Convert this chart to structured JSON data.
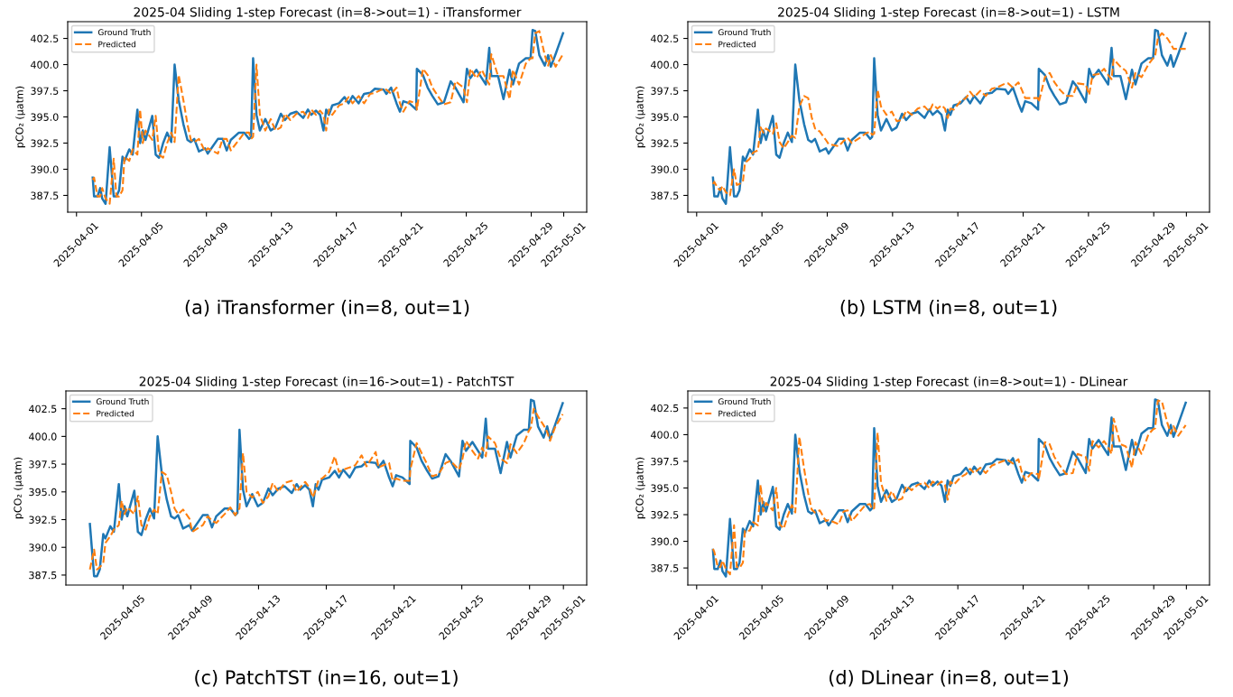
{
  "chart_data": [
    {
      "type": "line",
      "title": "2025-04 Sliding 1-step Forecast (in=8->out=1) - iTransformer",
      "ylabel": "pCO₂ (µatm)",
      "annotations": [
        "(a) iTransformer (in=8, out=1)"
      ],
      "x": [
        "2025-04-02T00:00",
        "2025-04-02T02:00",
        "2025-04-02T07:00",
        "2025-04-02T11:00",
        "2025-04-02T14:00",
        "2025-04-02T19:00",
        "2025-04-03T01:00",
        "2025-04-03T07:00",
        "2025-04-03T11:00",
        "2025-04-03T15:00",
        "2025-04-03T20:00",
        "2025-04-03T23:00",
        "2025-04-04T06:00",
        "2025-04-04T11:00",
        "2025-04-04T18:00",
        "2025-04-04T22:00",
        "2025-04-05T02:00",
        "2025-04-05T06:00",
        "2025-04-05T16:00",
        "2025-04-05T21:00",
        "2025-04-06T02:00",
        "2025-04-06T08:00",
        "2025-04-06T14:00",
        "2025-04-06T20:00",
        "2025-04-07T01:00",
        "2025-04-07T07:00",
        "2025-04-07T14:00",
        "2025-04-07T20:00",
        "2025-04-08T01:00",
        "2025-04-08T06:00",
        "2025-04-08T13:00",
        "2025-04-08T22:00",
        "2025-04-09T02:00",
        "2025-04-09T17:00",
        "2025-04-10T00:00",
        "2025-04-10T06:00",
        "2025-04-10T12:00",
        "2025-04-11T00:00",
        "2025-04-11T08:00",
        "2025-04-11T15:00",
        "2025-04-11T18:00",
        "2025-04-11T21:00",
        "2025-04-12T02:00",
        "2025-04-12T07:00",
        "2025-04-12T15:00",
        "2025-04-12T23:00",
        "2025-04-13T06:00",
        "2025-04-13T14:00",
        "2025-04-13T20:00",
        "2025-04-14T04:00",
        "2025-04-14T13:00",
        "2025-04-14T23:00",
        "2025-04-15T06:00",
        "2025-04-15T11:00",
        "2025-04-15T18:00",
        "2025-04-16T00:00",
        "2025-04-16T05:00",
        "2025-04-16T09:00",
        "2025-04-16T13:00",
        "2025-04-16T18:00",
        "2025-04-17T04:00",
        "2025-04-17T12:00",
        "2025-04-17T18:00",
        "2025-04-18T00:00",
        "2025-04-18T09:00",
        "2025-04-18T17:00",
        "2025-04-19T02:00",
        "2025-04-19T09:00",
        "2025-04-19T22:00",
        "2025-04-20T02:00",
        "2025-04-20T09:00",
        "2025-04-20T17:00",
        "2025-04-20T22:00",
        "2025-04-21T03:00",
        "2025-04-21T12:00",
        "2025-04-21T22:00",
        "2025-04-21T23:00",
        "2025-04-22T08:00",
        "2025-04-22T15:00",
        "2025-04-22T22:00",
        "2025-04-23T06:00",
        "2025-04-23T15:00",
        "2025-04-24T01:00",
        "2025-04-24T08:00",
        "2025-04-24T20:00",
        "2025-04-25T01:00",
        "2025-04-25T06:00",
        "2025-04-25T15:00",
        "2025-04-25T23:00",
        "2025-04-26T05:00",
        "2025-04-26T10:00",
        "2025-04-26T13:00",
        "2025-04-26T23:00",
        "2025-04-27T07:00",
        "2025-04-27T16:00",
        "2025-04-27T21:00",
        "2025-04-28T06:00",
        "2025-04-28T16:00",
        "2025-04-28T23:00",
        "2025-04-29T02:00",
        "2025-04-29T06:00",
        "2025-04-29T12:00",
        "2025-04-29T20:00",
        "2025-04-30T01:00",
        "2025-04-30T05:00",
        "2025-04-30T12:00",
        "2025-04-30T23:00"
      ],
      "series": [
        {
          "name": "Ground Truth",
          "color": "#1f77b4",
          "line_style": "solid",
          "values": [
            389.2,
            387.4,
            387.4,
            388.2,
            387.2,
            386.7,
            392.1,
            387.4,
            387.4,
            388.0,
            391.2,
            390.8,
            391.9,
            391.4,
            395.7,
            392.5,
            393.7,
            392.8,
            395.1,
            391.4,
            391.1,
            392.5,
            393.5,
            392.6,
            400.0,
            396.6,
            394.3,
            392.8,
            392.6,
            392.9,
            391.7,
            392.0,
            391.5,
            392.9,
            392.9,
            391.8,
            392.8,
            393.5,
            393.5,
            392.9,
            393.1,
            400.6,
            395.2,
            393.7,
            394.8,
            393.7,
            394.0,
            395.3,
            394.7,
            395.3,
            395.5,
            394.9,
            395.7,
            395.2,
            395.6,
            395.2,
            393.7,
            395.7,
            395.2,
            396.1,
            396.3,
            396.9,
            396.3,
            397.0,
            396.3,
            397.2,
            397.3,
            397.7,
            397.6,
            397.2,
            397.8,
            396.3,
            395.5,
            396.5,
            396.3,
            395.7,
            399.6,
            399.0,
            397.8,
            397.0,
            396.2,
            396.4,
            398.4,
            397.8,
            396.4,
            399.6,
            398.7,
            399.5,
            398.7,
            398.1,
            401.6,
            398.9,
            398.9,
            396.7,
            399.5,
            398.1,
            400.1,
            400.6,
            400.6,
            403.3,
            403.2,
            400.9,
            399.9,
            400.9,
            399.8,
            401.0,
            403.0
          ]
        },
        {
          "name": "Predicted",
          "color": "#ff7f0e",
          "line_style": "dashed",
          "values": [
            389.0,
            389.2,
            387.4,
            387.4,
            388.2,
            387.2,
            386.7,
            391.0,
            387.4,
            387.4,
            388.0,
            391.2,
            390.8,
            391.9,
            391.4,
            395.7,
            392.5,
            393.7,
            392.8,
            395.1,
            391.4,
            391.1,
            392.5,
            393.5,
            392.6,
            399.0,
            396.6,
            394.3,
            392.8,
            392.6,
            392.9,
            391.7,
            392.0,
            391.5,
            392.9,
            392.9,
            391.8,
            392.8,
            393.5,
            393.5,
            392.9,
            393.1,
            400.0,
            395.2,
            393.7,
            394.8,
            393.7,
            394.0,
            395.3,
            394.7,
            395.3,
            395.5,
            394.9,
            395.7,
            395.2,
            395.6,
            395.2,
            393.7,
            395.7,
            395.2,
            396.1,
            396.3,
            396.9,
            396.3,
            397.0,
            396.3,
            397.2,
            397.3,
            397.7,
            397.6,
            397.2,
            397.8,
            396.3,
            395.5,
            396.5,
            396.3,
            395.7,
            399.6,
            399.0,
            397.8,
            397.0,
            396.2,
            396.4,
            398.4,
            397.8,
            396.4,
            399.6,
            398.7,
            399.5,
            398.7,
            398.1,
            401.0,
            398.9,
            398.9,
            396.7,
            399.5,
            398.1,
            400.1,
            400.6,
            400.6,
            403.0,
            403.2,
            400.9,
            399.9,
            400.9,
            399.8,
            401.0
          ]
        }
      ],
      "xlim": [
        "2025-03-31T11:00",
        "2025-05-02T10:00"
      ],
      "xticks": [
        "2025-04-01",
        "2025-04-05",
        "2025-04-09",
        "2025-04-13",
        "2025-04-17",
        "2025-04-21",
        "2025-04-25",
        "2025-04-29",
        "2025-05-01"
      ],
      "ylim": [
        385.9,
        404.1
      ],
      "yticks": [
        {
          "value": 387.5,
          "label": "387.5"
        },
        {
          "value": 390,
          "label": "390.0"
        },
        {
          "value": 392.5,
          "label": "392.5"
        },
        {
          "value": 395,
          "label": "395.0"
        },
        {
          "value": 397.5,
          "label": "397.5"
        },
        {
          "value": 400,
          "label": "400.0"
        },
        {
          "value": 402.5,
          "label": "402.5"
        }
      ],
      "grid": false,
      "legend": "top left"
    },
    {
      "type": "line",
      "title": "2025-04 Sliding 1-step Forecast (in=8->out=1) - LSTM",
      "ylabel": "pCO₂ (µatm)",
      "annotations": [
        "(b) LSTM (in=8, out=1)"
      ],
      "x": [
        "2025-04-02T00:00",
        "2025-04-02T02:00",
        "2025-04-02T07:00",
        "2025-04-02T11:00",
        "2025-04-02T14:00",
        "2025-04-02T19:00",
        "2025-04-03T01:00",
        "2025-04-03T07:00",
        "2025-04-03T11:00",
        "2025-04-03T15:00",
        "2025-04-03T20:00",
        "2025-04-03T23:00",
        "2025-04-04T06:00",
        "2025-04-04T11:00",
        "2025-04-04T18:00",
        "2025-04-04T22:00",
        "2025-04-05T02:00",
        "2025-04-05T06:00",
        "2025-04-05T16:00",
        "2025-04-05T21:00",
        "2025-04-06T02:00",
        "2025-04-06T08:00",
        "2025-04-06T14:00",
        "2025-04-06T20:00",
        "2025-04-07T01:00",
        "2025-04-07T07:00",
        "2025-04-07T14:00",
        "2025-04-07T20:00",
        "2025-04-08T01:00",
        "2025-04-08T06:00",
        "2025-04-08T13:00",
        "2025-04-08T22:00",
        "2025-04-09T02:00",
        "2025-04-09T17:00",
        "2025-04-10T00:00",
        "2025-04-10T06:00",
        "2025-04-10T12:00",
        "2025-04-11T00:00",
        "2025-04-11T08:00",
        "2025-04-11T15:00",
        "2025-04-11T18:00",
        "2025-04-11T21:00",
        "2025-04-12T02:00",
        "2025-04-12T07:00",
        "2025-04-12T15:00",
        "2025-04-12T23:00",
        "2025-04-13T06:00",
        "2025-04-13T14:00",
        "2025-04-13T20:00",
        "2025-04-14T04:00",
        "2025-04-14T13:00",
        "2025-04-14T23:00",
        "2025-04-15T06:00",
        "2025-04-15T11:00",
        "2025-04-15T18:00",
        "2025-04-16T00:00",
        "2025-04-16T05:00",
        "2025-04-16T09:00",
        "2025-04-16T13:00",
        "2025-04-16T18:00",
        "2025-04-17T04:00",
        "2025-04-17T12:00",
        "2025-04-17T18:00",
        "2025-04-18T00:00",
        "2025-04-18T09:00",
        "2025-04-18T17:00",
        "2025-04-19T02:00",
        "2025-04-19T09:00",
        "2025-04-19T22:00",
        "2025-04-20T02:00",
        "2025-04-20T09:00",
        "2025-04-20T17:00",
        "2025-04-20T22:00",
        "2025-04-21T03:00",
        "2025-04-21T12:00",
        "2025-04-21T22:00",
        "2025-04-21T23:00",
        "2025-04-22T08:00",
        "2025-04-22T15:00",
        "2025-04-22T22:00",
        "2025-04-23T06:00",
        "2025-04-23T15:00",
        "2025-04-24T01:00",
        "2025-04-24T08:00",
        "2025-04-24T20:00",
        "2025-04-25T01:00",
        "2025-04-25T06:00",
        "2025-04-25T15:00",
        "2025-04-25T23:00",
        "2025-04-26T05:00",
        "2025-04-26T10:00",
        "2025-04-26T13:00",
        "2025-04-26T23:00",
        "2025-04-27T07:00",
        "2025-04-27T16:00",
        "2025-04-27T21:00",
        "2025-04-28T06:00",
        "2025-04-28T16:00",
        "2025-04-28T23:00",
        "2025-04-29T02:00",
        "2025-04-29T06:00",
        "2025-04-29T12:00",
        "2025-04-29T20:00",
        "2025-04-30T01:00",
        "2025-04-30T05:00",
        "2025-04-30T12:00",
        "2025-04-30T23:00"
      ],
      "series": [
        {
          "name": "Ground Truth",
          "color": "#1f77b4",
          "line_style": "solid",
          "values": [
            389.2,
            387.4,
            387.4,
            388.2,
            387.2,
            386.7,
            392.1,
            387.4,
            387.4,
            388.0,
            391.2,
            390.8,
            391.9,
            391.4,
            395.7,
            392.5,
            393.7,
            392.8,
            395.1,
            391.4,
            391.1,
            392.5,
            393.5,
            392.6,
            400.0,
            396.6,
            394.3,
            392.8,
            392.6,
            392.9,
            391.7,
            392.0,
            391.5,
            392.9,
            392.9,
            391.8,
            392.8,
            393.5,
            393.5,
            392.9,
            393.1,
            400.6,
            395.2,
            393.7,
            394.8,
            393.7,
            394.0,
            395.3,
            394.7,
            395.3,
            395.5,
            394.9,
            395.7,
            395.2,
            395.6,
            395.2,
            393.7,
            395.7,
            395.2,
            396.1,
            396.3,
            396.9,
            396.3,
            397.0,
            396.3,
            397.2,
            397.3,
            397.7,
            397.6,
            397.2,
            397.8,
            396.3,
            395.5,
            396.5,
            396.3,
            395.7,
            399.6,
            399.0,
            397.8,
            397.0,
            396.2,
            396.4,
            398.4,
            397.8,
            396.4,
            399.6,
            398.7,
            399.5,
            398.7,
            398.1,
            401.6,
            398.9,
            398.9,
            396.7,
            399.5,
            398.1,
            400.1,
            400.6,
            400.6,
            403.3,
            403.2,
            400.9,
            399.9,
            400.9,
            399.8,
            401.0,
            403.0
          ]
        },
        {
          "name": "Predicted",
          "color": "#ff7f0e",
          "line_style": "dashed",
          "values": [
            388.6,
            388.8,
            388.2,
            388.0,
            388.4,
            387.8,
            387.5,
            390.0,
            388.5,
            388.6,
            388.8,
            390.6,
            391.0,
            391.6,
            391.8,
            394.0,
            393.5,
            393.9,
            393.4,
            394.4,
            392.6,
            392.0,
            392.6,
            393.2,
            393.0,
            396.0,
            397.0,
            396.8,
            395.0,
            393.9,
            393.6,
            392.8,
            392.4,
            392.2,
            392.7,
            393.0,
            392.5,
            393.0,
            393.4,
            393.6,
            393.3,
            393.4,
            397.6,
            396.0,
            395.2,
            395.5,
            394.6,
            394.7,
            395.6,
            395.2,
            395.8,
            396.0,
            395.5,
            396.2,
            395.8,
            396.1,
            395.8,
            394.9,
            395.8,
            395.7,
            396.5,
            396.8,
            397.4,
            396.9,
            397.5,
            397.0,
            397.7,
            397.8,
            398.2,
            398.2,
            397.8,
            398.3,
            397.6,
            396.8,
            396.8,
            396.8,
            396.4,
            398.8,
            399.2,
            398.3,
            397.6,
            397.0,
            397.0,
            398.2,
            398.1,
            397.1,
            399.0,
            399.1,
            399.6,
            399.0,
            398.6,
            400.5,
            399.8,
            399.4,
            397.8,
            399.2,
            398.8,
            400.0,
            400.6,
            400.8,
            402.5,
            403.0,
            402.5,
            402.0,
            401.5,
            401.5,
            401.5
          ]
        }
      ],
      "xlim": [
        "2025-03-31T11:00",
        "2025-05-02T10:00"
      ],
      "xticks": [
        "2025-04-01",
        "2025-04-05",
        "2025-04-09",
        "2025-04-13",
        "2025-04-17",
        "2025-04-21",
        "2025-04-25",
        "2025-04-29",
        "2025-05-01"
      ],
      "ylim": [
        385.9,
        404.1
      ],
      "yticks": [
        {
          "value": 387.5,
          "label": "387.5"
        },
        {
          "value": 390,
          "label": "390.0"
        },
        {
          "value": 392.5,
          "label": "392.5"
        },
        {
          "value": 395,
          "label": "395.0"
        },
        {
          "value": 397.5,
          "label": "397.5"
        },
        {
          "value": 400,
          "label": "400.0"
        },
        {
          "value": 402.5,
          "label": "402.5"
        }
      ],
      "grid": false,
      "legend": "top left"
    },
    {
      "type": "line",
      "title": "2025-04 Sliding 1-step Forecast (in=16->out=1) - PatchTST",
      "ylabel": "pCO₂ (µatm)",
      "annotations": [
        "(c) PatchTST (in=16, out=1)"
      ],
      "x": [
        "2025-04-03T01:00",
        "2025-04-03T07:00",
        "2025-04-03T11:00",
        "2025-04-03T15:00",
        "2025-04-03T20:00",
        "2025-04-03T23:00",
        "2025-04-04T06:00",
        "2025-04-04T11:00",
        "2025-04-04T18:00",
        "2025-04-04T22:00",
        "2025-04-05T02:00",
        "2025-04-05T06:00",
        "2025-04-05T16:00",
        "2025-04-05T21:00",
        "2025-04-06T02:00",
        "2025-04-06T08:00",
        "2025-04-06T14:00",
        "2025-04-06T20:00",
        "2025-04-07T01:00",
        "2025-04-07T07:00",
        "2025-04-07T14:00",
        "2025-04-07T20:00",
        "2025-04-08T01:00",
        "2025-04-08T06:00",
        "2025-04-08T13:00",
        "2025-04-08T22:00",
        "2025-04-09T02:00",
        "2025-04-09T17:00",
        "2025-04-10T00:00",
        "2025-04-10T06:00",
        "2025-04-10T12:00",
        "2025-04-11T00:00",
        "2025-04-11T08:00",
        "2025-04-11T15:00",
        "2025-04-11T18:00",
        "2025-04-11T21:00",
        "2025-04-12T02:00",
        "2025-04-12T07:00",
        "2025-04-12T15:00",
        "2025-04-12T23:00",
        "2025-04-13T06:00",
        "2025-04-13T14:00",
        "2025-04-13T20:00",
        "2025-04-14T04:00",
        "2025-04-14T13:00",
        "2025-04-14T23:00",
        "2025-04-15T06:00",
        "2025-04-15T11:00",
        "2025-04-15T18:00",
        "2025-04-16T00:00",
        "2025-04-16T05:00",
        "2025-04-16T09:00",
        "2025-04-16T13:00",
        "2025-04-16T18:00",
        "2025-04-17T04:00",
        "2025-04-17T12:00",
        "2025-04-17T18:00",
        "2025-04-18T00:00",
        "2025-04-18T09:00",
        "2025-04-18T17:00",
        "2025-04-19T02:00",
        "2025-04-19T09:00",
        "2025-04-19T22:00",
        "2025-04-20T02:00",
        "2025-04-20T09:00",
        "2025-04-20T17:00",
        "2025-04-20T22:00",
        "2025-04-21T03:00",
        "2025-04-21T12:00",
        "2025-04-21T22:00",
        "2025-04-21T23:00",
        "2025-04-22T08:00",
        "2025-04-22T15:00",
        "2025-04-22T22:00",
        "2025-04-23T06:00",
        "2025-04-23T15:00",
        "2025-04-24T01:00",
        "2025-04-24T08:00",
        "2025-04-24T20:00",
        "2025-04-25T01:00",
        "2025-04-25T06:00",
        "2025-04-25T15:00",
        "2025-04-25T23:00",
        "2025-04-26T05:00",
        "2025-04-26T10:00",
        "2025-04-26T13:00",
        "2025-04-26T23:00",
        "2025-04-27T07:00",
        "2025-04-27T16:00",
        "2025-04-27T21:00",
        "2025-04-28T06:00",
        "2025-04-28T16:00",
        "2025-04-28T23:00",
        "2025-04-29T02:00",
        "2025-04-29T06:00",
        "2025-04-29T12:00",
        "2025-04-29T20:00",
        "2025-04-30T01:00",
        "2025-04-30T05:00",
        "2025-04-30T12:00",
        "2025-04-30T23:00"
      ],
      "series": [
        {
          "name": "Ground Truth",
          "color": "#1f77b4",
          "line_style": "solid",
          "values": [
            392.1,
            387.4,
            387.4,
            388.0,
            391.2,
            390.8,
            391.9,
            391.4,
            395.7,
            392.5,
            393.7,
            392.8,
            395.1,
            391.4,
            391.1,
            392.5,
            393.5,
            392.6,
            400.0,
            396.6,
            394.3,
            392.8,
            392.6,
            392.9,
            391.7,
            392.0,
            391.5,
            392.9,
            392.9,
            391.8,
            392.8,
            393.5,
            393.5,
            392.9,
            393.1,
            400.6,
            395.2,
            393.7,
            394.8,
            393.7,
            394.0,
            395.3,
            394.7,
            395.3,
            395.5,
            394.9,
            395.7,
            395.2,
            395.6,
            395.2,
            393.7,
            395.7,
            395.2,
            396.1,
            396.3,
            396.9,
            396.3,
            397.0,
            396.3,
            397.2,
            397.3,
            397.7,
            397.6,
            397.2,
            397.8,
            396.3,
            395.5,
            396.5,
            396.3,
            395.7,
            399.6,
            399.0,
            397.8,
            397.0,
            396.2,
            396.4,
            398.4,
            397.8,
            396.4,
            399.6,
            398.7,
            399.5,
            398.7,
            398.1,
            401.6,
            398.9,
            398.9,
            396.7,
            399.5,
            398.1,
            400.1,
            400.6,
            400.6,
            403.3,
            403.2,
            400.9,
            399.9,
            400.9,
            399.8,
            401.0,
            403.0
          ]
        },
        {
          "name": "Predicted",
          "color": "#ff7f0e",
          "line_style": "dashed",
          "values": [
            388.0,
            389.8,
            388.0,
            388.2,
            388.6,
            390.4,
            391.0,
            391.6,
            392.0,
            394.2,
            393.0,
            393.6,
            393.0,
            394.6,
            392.0,
            391.6,
            392.8,
            393.4,
            393.0,
            396.8,
            396.5,
            395.0,
            393.5,
            393.0,
            393.4,
            392.6,
            391.4,
            392.0,
            392.8,
            392.4,
            392.2,
            393.0,
            393.6,
            392.9,
            393.3,
            393.5,
            398.5,
            395.0,
            394.5,
            395.0,
            394.0,
            394.6,
            395.8,
            395.0,
            395.8,
            396.0,
            395.0,
            395.4,
            395.9,
            395.4,
            394.5,
            395.2,
            396.1,
            396.2,
            396.8,
            398.2,
            396.8,
            397.0,
            397.2,
            397.4,
            398.3,
            397.3,
            398.6,
            397.2,
            397.4,
            397.6,
            396.0,
            396.2,
            396.0,
            396.0,
            397.0,
            399.4,
            398.5,
            397.6,
            396.4,
            396.6,
            397.6,
            397.8,
            397.0,
            398.0,
            399.6,
            398.7,
            398.0,
            399.0,
            398.2,
            400.0,
            399.4,
            398.0,
            397.6,
            399.3,
            398.5,
            399.4,
            400.5,
            400.8,
            402.5,
            401.8,
            401.0,
            400.4,
            399.6,
            400.8,
            402.0
          ]
        }
      ],
      "xlim": [
        "2025-04-01T15:00",
        "2025-05-02T09:00"
      ],
      "xticks": [
        "2025-04-05",
        "2025-04-09",
        "2025-04-13",
        "2025-04-17",
        "2025-04-21",
        "2025-04-25",
        "2025-04-29",
        "2025-05-01"
      ],
      "ylim": [
        386.6,
        404.1
      ],
      "yticks": [
        {
          "value": 387.5,
          "label": "387.5"
        },
        {
          "value": 390,
          "label": "390.0"
        },
        {
          "value": 392.5,
          "label": "392.5"
        },
        {
          "value": 395,
          "label": "395.0"
        },
        {
          "value": 397.5,
          "label": "397.5"
        },
        {
          "value": 400,
          "label": "400.0"
        },
        {
          "value": 402.5,
          "label": "402.5"
        }
      ],
      "grid": false,
      "legend": "top left"
    },
    {
      "type": "line",
      "title": "2025-04 Sliding 1-step Forecast (in=8->out=1) - DLinear",
      "ylabel": "pCO₂ (µatm)",
      "annotations": [
        "(d) DLinear (in=8, out=1)"
      ],
      "x": [
        "2025-04-02T00:00",
        "2025-04-02T02:00",
        "2025-04-02T07:00",
        "2025-04-02T11:00",
        "2025-04-02T14:00",
        "2025-04-02T19:00",
        "2025-04-03T01:00",
        "2025-04-03T07:00",
        "2025-04-03T11:00",
        "2025-04-03T15:00",
        "2025-04-03T20:00",
        "2025-04-03T23:00",
        "2025-04-04T06:00",
        "2025-04-04T11:00",
        "2025-04-04T18:00",
        "2025-04-04T22:00",
        "2025-04-05T02:00",
        "2025-04-05T06:00",
        "2025-04-05T16:00",
        "2025-04-05T21:00",
        "2025-04-06T02:00",
        "2025-04-06T08:00",
        "2025-04-06T14:00",
        "2025-04-06T20:00",
        "2025-04-07T01:00",
        "2025-04-07T07:00",
        "2025-04-07T14:00",
        "2025-04-07T20:00",
        "2025-04-08T01:00",
        "2025-04-08T06:00",
        "2025-04-08T13:00",
        "2025-04-08T22:00",
        "2025-04-09T02:00",
        "2025-04-09T17:00",
        "2025-04-10T00:00",
        "2025-04-10T06:00",
        "2025-04-10T12:00",
        "2025-04-11T00:00",
        "2025-04-11T08:00",
        "2025-04-11T15:00",
        "2025-04-11T18:00",
        "2025-04-11T21:00",
        "2025-04-12T02:00",
        "2025-04-12T07:00",
        "2025-04-12T15:00",
        "2025-04-12T23:00",
        "2025-04-13T06:00",
        "2025-04-13T14:00",
        "2025-04-13T20:00",
        "2025-04-14T04:00",
        "2025-04-14T13:00",
        "2025-04-14T23:00",
        "2025-04-15T06:00",
        "2025-04-15T11:00",
        "2025-04-15T18:00",
        "2025-04-16T00:00",
        "2025-04-16T05:00",
        "2025-04-16T09:00",
        "2025-04-16T13:00",
        "2025-04-16T18:00",
        "2025-04-17T04:00",
        "2025-04-17T12:00",
        "2025-04-17T18:00",
        "2025-04-18T00:00",
        "2025-04-18T09:00",
        "2025-04-18T17:00",
        "2025-04-19T02:00",
        "2025-04-19T09:00",
        "2025-04-19T22:00",
        "2025-04-20T02:00",
        "2025-04-20T09:00",
        "2025-04-20T17:00",
        "2025-04-20T22:00",
        "2025-04-21T03:00",
        "2025-04-21T12:00",
        "2025-04-21T22:00",
        "2025-04-21T23:00",
        "2025-04-22T08:00",
        "2025-04-22T15:00",
        "2025-04-22T22:00",
        "2025-04-23T06:00",
        "2025-04-23T15:00",
        "2025-04-24T01:00",
        "2025-04-24T08:00",
        "2025-04-24T20:00",
        "2025-04-25T01:00",
        "2025-04-25T06:00",
        "2025-04-25T15:00",
        "2025-04-25T23:00",
        "2025-04-26T05:00",
        "2025-04-26T10:00",
        "2025-04-26T13:00",
        "2025-04-26T23:00",
        "2025-04-27T07:00",
        "2025-04-27T16:00",
        "2025-04-27T21:00",
        "2025-04-28T06:00",
        "2025-04-28T16:00",
        "2025-04-28T23:00",
        "2025-04-29T02:00",
        "2025-04-29T06:00",
        "2025-04-29T12:00",
        "2025-04-29T20:00",
        "2025-04-30T01:00",
        "2025-04-30T05:00",
        "2025-04-30T12:00",
        "2025-04-30T23:00"
      ],
      "series": [
        {
          "name": "Ground Truth",
          "color": "#1f77b4",
          "line_style": "solid",
          "values": [
            389.2,
            387.4,
            387.4,
            388.2,
            387.2,
            386.7,
            392.1,
            387.4,
            387.4,
            388.0,
            391.2,
            390.8,
            391.9,
            391.4,
            395.7,
            392.5,
            393.7,
            392.8,
            395.1,
            391.4,
            391.1,
            392.5,
            393.5,
            392.6,
            400.0,
            396.6,
            394.3,
            392.8,
            392.6,
            392.9,
            391.7,
            392.0,
            391.5,
            392.9,
            392.9,
            391.8,
            392.8,
            393.5,
            393.5,
            392.9,
            393.1,
            400.6,
            395.2,
            393.7,
            394.8,
            393.7,
            394.0,
            395.3,
            394.7,
            395.3,
            395.5,
            394.9,
            395.7,
            395.2,
            395.6,
            395.2,
            393.7,
            395.7,
            395.2,
            396.1,
            396.3,
            396.9,
            396.3,
            397.0,
            396.3,
            397.2,
            397.3,
            397.7,
            397.6,
            397.2,
            397.8,
            396.3,
            395.5,
            396.5,
            396.3,
            395.7,
            399.6,
            399.0,
            397.8,
            397.0,
            396.2,
            396.4,
            398.4,
            397.8,
            396.4,
            399.6,
            398.7,
            399.5,
            398.7,
            398.1,
            401.6,
            398.9,
            398.9,
            396.7,
            399.5,
            398.1,
            400.1,
            400.6,
            400.6,
            403.3,
            403.2,
            400.9,
            399.9,
            400.9,
            399.8,
            401.0,
            403.0
          ]
        },
        {
          "name": "Predicted",
          "color": "#ff7f0e",
          "line_style": "dashed",
          "values": [
            389.3,
            389.0,
            387.6,
            387.6,
            388.2,
            387.4,
            386.9,
            391.5,
            387.6,
            387.5,
            388.0,
            391.0,
            391.0,
            391.8,
            391.5,
            395.3,
            392.8,
            393.6,
            392.9,
            395.0,
            391.6,
            391.2,
            392.4,
            393.4,
            392.7,
            399.8,
            396.8,
            394.5,
            393.0,
            392.7,
            392.9,
            391.9,
            392.0,
            391.6,
            392.8,
            392.9,
            391.9,
            392.8,
            393.4,
            393.5,
            393.0,
            393.1,
            400.2,
            395.5,
            393.8,
            394.7,
            393.8,
            394.0,
            395.2,
            394.8,
            395.3,
            395.5,
            395.0,
            395.6,
            395.3,
            395.6,
            395.3,
            393.9,
            395.6,
            395.3,
            396.0,
            396.3,
            396.8,
            396.4,
            396.9,
            396.4,
            397.1,
            397.3,
            397.6,
            397.6,
            397.3,
            397.7,
            396.5,
            395.7,
            396.4,
            396.3,
            395.8,
            399.3,
            399.1,
            397.9,
            397.1,
            396.3,
            396.4,
            398.2,
            397.9,
            396.6,
            399.4,
            398.8,
            399.4,
            398.8,
            398.2,
            401.5,
            399.1,
            398.9,
            396.9,
            399.3,
            398.2,
            400.0,
            400.5,
            400.6,
            403.2,
            403.1,
            401.1,
            400.1,
            400.8,
            399.9,
            400.9
          ]
        }
      ],
      "xlim": [
        "2025-03-31T11:00",
        "2025-05-02T10:00"
      ],
      "xticks": [
        "2025-04-01",
        "2025-04-05",
        "2025-04-09",
        "2025-04-13",
        "2025-04-17",
        "2025-04-21",
        "2025-04-25",
        "2025-04-29",
        "2025-05-01"
      ],
      "ylim": [
        385.9,
        404.1
      ],
      "yticks": [
        {
          "value": 387.5,
          "label": "387.5"
        },
        {
          "value": 390,
          "label": "390.0"
        },
        {
          "value": 392.5,
          "label": "392.5"
        },
        {
          "value": 395,
          "label": "395.0"
        },
        {
          "value": 397.5,
          "label": "397.5"
        },
        {
          "value": 400,
          "label": "400.0"
        },
        {
          "value": 402.5,
          "label": "402.5"
        }
      ],
      "grid": false,
      "legend": "top left"
    }
  ]
}
